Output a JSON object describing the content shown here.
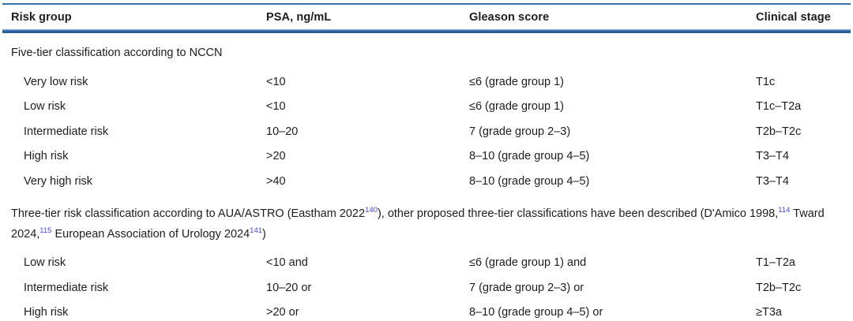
{
  "table": {
    "headers": [
      {
        "label": "Risk group"
      },
      {
        "label": "PSA, ng/mL"
      },
      {
        "label": "Gleason score"
      },
      {
        "label": "Clinical stage"
      }
    ],
    "sections": [
      {
        "title_segments": [
          {
            "text": "Five-tier classification according to NCCN",
            "sup": false
          }
        ],
        "rows": [
          {
            "risk_group": "Very low risk",
            "psa": "<10",
            "gleason": "≤6 (grade group 1)",
            "clinical_stage": "T1c"
          },
          {
            "risk_group": "Low risk",
            "psa": "<10",
            "gleason": "≤6 (grade group 1)",
            "clinical_stage": "T1c–T2a"
          },
          {
            "risk_group": "Intermediate risk",
            "psa": "10–20",
            "gleason": "7 (grade group 2–3)",
            "clinical_stage": "T2b–T2c"
          },
          {
            "risk_group": "High risk",
            "psa": ">20",
            "gleason": "8–10 (grade group 4–5)",
            "clinical_stage": "T3–T4"
          },
          {
            "risk_group": "Very high risk",
            "psa": ">40",
            "gleason": "8–10 (grade group 4–5)",
            "clinical_stage": "T3–T4"
          }
        ]
      },
      {
        "title_segments": [
          {
            "text": "Three-tier risk classification according to AUA/ASTRO (Eastham 2022",
            "sup": false
          },
          {
            "text": "140",
            "sup": true
          },
          {
            "text": "), other proposed three-tier classifications have been described (D'Amico 1998,",
            "sup": false
          },
          {
            "text": "114",
            "sup": true
          },
          {
            "text": " Tward 2024,",
            "sup": false
          },
          {
            "text": "115",
            "sup": true
          },
          {
            "text": " European Association of Urology 2024",
            "sup": false
          },
          {
            "text": "141",
            "sup": true
          },
          {
            "text": ")",
            "sup": false
          }
        ],
        "rows": [
          {
            "risk_group": "Low risk",
            "psa": "<10 and",
            "gleason": "≤6 (grade group 1) and",
            "clinical_stage": "T1–T2a"
          },
          {
            "risk_group": "Intermediate risk",
            "psa": "10–20 or",
            "gleason": "7 (grade group 2–3) or",
            "clinical_stage": "T2b–T2c"
          },
          {
            "risk_group": "High risk",
            "psa": ">20 or",
            "gleason": "8–10 (grade group 4–5) or",
            "clinical_stage": "≥T3a"
          }
        ]
      }
    ]
  },
  "colors": {
    "rule_blue": "#3a6fae",
    "rule_blue_dark": "#2a5d9e",
    "rule_blue_light": "#8aadd4",
    "citation_link": "#4545dc",
    "text": "#1d1d1d"
  }
}
